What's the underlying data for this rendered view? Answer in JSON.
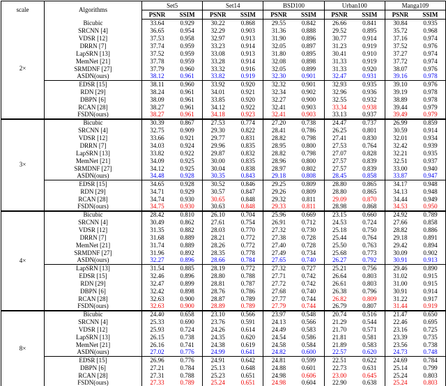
{
  "table": {
    "scale_header": "scale",
    "algorithms_header": "Algorithms",
    "datasets": [
      "Set5",
      "Set14",
      "BSD100",
      "Urban100",
      "Manga109"
    ],
    "metric_headers": [
      "PSNR",
      "SSIM"
    ],
    "colors": {
      "best": "#ee0000",
      "second_best": "#0000ee",
      "text": "#000000"
    },
    "legend_note": "color codes: k=black, b=blue (second best / ours-light), r=red (best)",
    "groups": [
      {
        "scale": "2×",
        "blocks": [
          [
            {
              "name": "Bicubic",
              "v": [
                "33.64",
                "0.929",
                "30.22",
                "0.868",
                "29.55",
                "0.842",
                "26.66",
                "0.841",
                "30.84",
                "0.935"
              ],
              "c": "kkkkkkkkkk"
            },
            {
              "name": "SRCNN [4]",
              "v": [
                "36.65",
                "0.954",
                "32.29",
                "0.903",
                "31.36",
                "0.888",
                "29.52",
                "0.895",
                "35.72",
                "0.968"
              ],
              "c": "kkkkkkkkkk"
            },
            {
              "name": "VDSR [12]",
              "v": [
                "37.53",
                "0.958",
                "32.97",
                "0.913",
                "31.90",
                "0.896",
                "30.77",
                "0.914",
                "37.16",
                "0.974"
              ],
              "c": "kkkkkkkkkk"
            },
            {
              "name": "DRRN [7]",
              "v": [
                "37.74",
                "0.959",
                "33.23",
                "0.914",
                "32.05",
                "0.897",
                "31.23",
                "0.919",
                "37.52",
                "0.976"
              ],
              "c": "kkkkkkkkkk"
            },
            {
              "name": "LapSRN [13]",
              "v": [
                "37.52",
                "0.959",
                "33.08",
                "0.913",
                "31.80",
                "0.895",
                "30.41",
                "0.910",
                "37.27",
                "0.974"
              ],
              "c": "kkkkkkkkkk"
            },
            {
              "name": "MemNet [21]",
              "v": [
                "37.78",
                "0.959",
                "33.28",
                "0.914",
                "32.08",
                "0.898",
                "31.33",
                "0.919",
                "37.72",
                "0.974"
              ],
              "c": "kkkkkkkkkk"
            },
            {
              "name": "SRMDNF [27]",
              "v": [
                "37.79",
                "0.960",
                "33.32",
                "0.916",
                "32.05",
                "0.899",
                "31.33",
                "0.920",
                "38.07",
                "0.976"
              ],
              "c": "kkkkkkkkkk"
            },
            {
              "name": "ASDN(ours)",
              "v": [
                "38.12",
                "0.961",
                "33.82",
                "0.919",
                "32.30",
                "0.901",
                "32.47",
                "0.931",
                "39.16",
                "0.978"
              ],
              "c": "bbbbbbbbbb"
            }
          ],
          [
            {
              "name": "EDSR [15]",
              "v": [
                "38.11",
                "0.960",
                "33.92",
                "0.920",
                "32.32",
                "0.901",
                "32.93",
                "0.935",
                "39.10",
                "0.976"
              ],
              "c": "kkkkkkkkkk"
            },
            {
              "name": "RDN [29]",
              "v": [
                "38.24",
                "0.961",
                "34.01",
                "0.921",
                "32.34",
                "0.902",
                "32.96",
                "0.936",
                "39.19",
                "0.978"
              ],
              "c": "kkkkkkkkkk"
            },
            {
              "name": "DBPN [6]",
              "v": [
                "38.09",
                "0.961",
                "33.85",
                "0.920",
                "32.27",
                "0.900",
                "32.55",
                "0.932",
                "38.89",
                "0.978"
              ],
              "c": "kkkkkkkkkk"
            },
            {
              "name": "RCAN [28]",
              "v": [
                "38.27",
                "0.961",
                "34.12",
                "0.922",
                "32.41",
                "0.903",
                "33.34",
                "0.938",
                "39.44",
                "0.979"
              ],
              "c": "kkkkkkrrkk"
            },
            {
              "name": "FSDN(ours)",
              "v": [
                "38.27",
                "0.961",
                "34.18",
                "0.923",
                "32.41",
                "0.903",
                "33.13",
                "0.937",
                "39.49",
                "0.979"
              ],
              "c": "rrrrrrkkrr"
            }
          ]
        ]
      },
      {
        "scale": "3×",
        "blocks": [
          [
            {
              "name": "Bicubic",
              "v": [
                "30.39",
                "0.867",
                "27.53",
                "0.774",
                "27.20",
                "0.738",
                "24.47",
                "0.737",
                "26.99",
                "0.859"
              ],
              "c": "kkkkkkkkkk"
            },
            {
              "name": "SRCNN [4]",
              "v": [
                "32.75",
                "0.909",
                "29.30",
                "0.822",
                "28.41",
                "0.786",
                "26.25",
                "0.801",
                "30.59",
                "0.914"
              ],
              "c": "kkkkkkkkkk"
            },
            {
              "name": "VDSR [12]",
              "v": [
                "33.66",
                "0.921",
                "29.77",
                "0.831",
                "28.82",
                "0.798",
                "27.41",
                "0.830",
                "32.01",
                "0.934"
              ],
              "c": "kkkkkkkkkk"
            },
            {
              "name": "DRRN [7]",
              "v": [
                "34.03",
                "0.924",
                "29.96",
                "0.835",
                "28.95",
                "0.800",
                "27.53",
                "0.764",
                "32.42",
                "0.939"
              ],
              "c": "kkkkkkkkkk"
            },
            {
              "name": "LapSRN [13]",
              "v": [
                "33.82",
                "0.922",
                "29.87",
                "0.832",
                "28.82",
                "0.798",
                "27.07",
                "0.828",
                "32.21",
                "0.935"
              ],
              "c": "kkkkkkkkkk"
            },
            {
              "name": "MemNet [21]",
              "v": [
                "34.09",
                "0.925",
                "30.00",
                "0.835",
                "28.96",
                "0.800",
                "27.57",
                "0.839",
                "32.51",
                "0.937"
              ],
              "c": "kkkkkkkkkk"
            },
            {
              "name": "SRMDNF [27]",
              "v": [
                "34.12",
                "0.925",
                "30.04",
                "0.838",
                "28.97",
                "0.802",
                "27.57",
                "0.839",
                "33.00",
                "0.940"
              ],
              "c": "kkkkkkkkkk"
            },
            {
              "name": "ASDN(ours)",
              "v": [
                "34.48",
                "0.928",
                "30.35",
                "0.843",
                "29.18",
                "0.808",
                "28.45",
                "0.858",
                "33.87",
                "0.947"
              ],
              "c": "bbbbbbbbbb"
            }
          ],
          [
            {
              "name": "EDSR [15]",
              "v": [
                "34.65",
                "0.928",
                "30.52",
                "0.846",
                "29.25",
                "0.809",
                "28.80",
                "0.865",
                "34.17",
                "0.948"
              ],
              "c": "kkkkkkkkkk"
            },
            {
              "name": "RDN [29]",
              "v": [
                "34.71",
                "0.929",
                "30.57",
                "0.847",
                "29.26",
                "0.809",
                "28.80",
                "0.865",
                "34.13",
                "0.948"
              ],
              "c": "kkkkkkkkkk"
            },
            {
              "name": "RCAN [28]",
              "v": [
                "34.74",
                "0.930",
                "30.65",
                "0.848",
                "29.32",
                "0.811",
                "29.09",
                "0.870",
                "34.44",
                "0.949"
              ],
              "c": "kkrkkkrrkk"
            },
            {
              "name": "FSDN(ours)",
              "v": [
                "34.75",
                "0.930",
                "30.63",
                "0.848",
                "29.33",
                "0.811",
                "28.98",
                "0.868",
                "34.53",
                "0.950"
              ],
              "c": "rrkrrrkkrr"
            }
          ]
        ]
      },
      {
        "scale": "4×",
        "blocks": [
          [
            {
              "name": "Bicubic",
              "v": [
                "28.42",
                "0.810",
                "26.10",
                "0.704",
                "25.96",
                "0.669",
                "23.15",
                "0.660",
                "24.92",
                "0.789"
              ],
              "c": "kkkkkkkkkk"
            },
            {
              "name": "SRCNN [4]",
              "v": [
                "30.49",
                "0.862",
                "27.61",
                "0.754",
                "26.91",
                "0.712",
                "24.53",
                "0.724",
                "27.66",
                "0.858"
              ],
              "c": "kkkkkkkkkk"
            },
            {
              "name": "VDSR [12]",
              "v": [
                "31.35",
                "0.882",
                "28.03",
                "0.770",
                "27.32",
                "0.730",
                "25.18",
                "0.750",
                "28.82",
                "0.886"
              ],
              "c": "kkkkkkkkkk"
            },
            {
              "name": "DRRN [7]",
              "v": [
                "31.68",
                "0.889",
                "28.21",
                "0.772",
                "27.38",
                "0.728",
                "25.44",
                "0.764",
                "29.18",
                "0.891"
              ],
              "c": "kkkkkkkkkk"
            },
            {
              "name": "MemNet [21]",
              "v": [
                "31.74",
                "0.889",
                "28.26",
                "0.772",
                "27.40",
                "0.728",
                "25.50",
                "0.763",
                "29.42",
                "0.894"
              ],
              "c": "kkkkkkkkkk"
            },
            {
              "name": "SRMDNF [27]",
              "v": [
                "31.96",
                "0.892",
                "28.35",
                "0.778",
                "27.49",
                "0.734",
                "25.68",
                "0.773",
                "30.09",
                "0.902"
              ],
              "c": "kkkkkkkkkk"
            },
            {
              "name": "ASDN(ours)",
              "v": [
                "32.27",
                "0.896",
                "28.66",
                "0.784",
                "27.65",
                "0.740",
                "26.27",
                "0.792",
                "30.91",
                "0.913"
              ],
              "c": "bbbbbbbbbb"
            }
          ],
          [
            {
              "name": "LapSRN [13]",
              "v": [
                "31.54",
                "0.885",
                "28.19",
                "0.772",
                "27.32",
                "0.727",
                "25.21",
                "0.756",
                "29.46",
                "0.890"
              ],
              "c": "kkkkkkkkkk"
            },
            {
              "name": "EDSR [15]",
              "v": [
                "32.46",
                "0.896",
                "28.80",
                "0.788",
                "27.71",
                "0.742",
                "26.64",
                "0.803",
                "31.02",
                "0.915"
              ],
              "c": "kkkkkkkkkk"
            },
            {
              "name": "RDN [29]",
              "v": [
                "32.47",
                "0.899",
                "28.81",
                "0.787",
                "27.72",
                "0.742",
                "26.61",
                "0.803",
                "31.00",
                "0.915"
              ],
              "c": "kkkkkkkkkk"
            },
            {
              "name": "DBPN [6]",
              "v": [
                "32.42",
                "0.898",
                "28.76",
                "0.786",
                "27.68",
                "0.740",
                "26.38",
                "0.796",
                "30.91",
                "0.914"
              ],
              "c": "kkkkkkkkkk"
            },
            {
              "name": "RCAN [28]",
              "v": [
                "32.63",
                "0.900",
                "28.87",
                "0.789",
                "27.77",
                "0.744",
                "26.82",
                "0.809",
                "31.22",
                "0.917"
              ],
              "c": "kkkkkkrrkk"
            },
            {
              "name": "FSDN(ours)",
              "v": [
                "32.63",
                "0.900",
                "28.89",
                "0.789",
                "27.79",
                "0.744",
                "26.79",
                "0.807",
                "31.44",
                "0.919"
              ],
              "c": "rrrrrrkkrr"
            }
          ]
        ]
      },
      {
        "scale": "8×",
        "blocks": [
          [
            {
              "name": "Bicubic",
              "v": [
                "24.40",
                "0.658",
                "23.10",
                "0.566",
                "23.97",
                "0.548",
                "20.74",
                "0.516",
                "21.47",
                "0.650"
              ],
              "c": "kkkkkkkkkk"
            },
            {
              "name": "SRCNN [4]",
              "v": [
                "25.33",
                "0.690",
                "23.76",
                "0.591",
                "24.13",
                "0.566",
                "21.29",
                "0.544",
                "22.46",
                "0.695"
              ],
              "c": "kkkkkkkkkk"
            },
            {
              "name": "VDSR [12]",
              "v": [
                "25.93",
                "0.724",
                "24.26",
                "0.614",
                "24.49",
                "0.583",
                "21.70",
                "0.571",
                "23.16",
                "0.725"
              ],
              "c": "kkkkkkkkkk"
            },
            {
              "name": "LapSRN [13]",
              "v": [
                "26.15",
                "0.738",
                "24.35",
                "0.620",
                "24.54",
                "0.586",
                "21.81",
                "0.581",
                "23.39",
                "0.735"
              ],
              "c": "kkkkkkkkkk"
            },
            {
              "name": "MemNet [21]",
              "v": [
                "26.16",
                "0.741",
                "24.38",
                "0.619",
                "24.58",
                "0.584",
                "21.89",
                "0.583",
                "23.56",
                "0.738"
              ],
              "c": "kkkkkkkkkk"
            },
            {
              "name": "ASDN(ours)",
              "v": [
                "27.02",
                "0.776",
                "24.99",
                "0.641",
                "24.82",
                "0.600",
                "22.57",
                "0.620",
                "24.73",
                "0.748"
              ],
              "c": "bbbbbbbbbb"
            }
          ],
          [
            {
              "name": "EDSR [15]",
              "v": [
                "26.96",
                "0.776",
                "24.91",
                "0.642",
                "24.81",
                "0.599",
                "22.51",
                "0.622",
                "24.69",
                "0.784"
              ],
              "c": "kkkkkkkkkk"
            },
            {
              "name": "DBPN [6]",
              "v": [
                "27.21",
                "0.784",
                "25.13",
                "0.648",
                "24.88",
                "0.601",
                "22.73",
                "0.631",
                "25.14",
                "0.799"
              ],
              "c": "kkkkkkkkkk"
            },
            {
              "name": "RCAN [28]",
              "v": [
                "27.31",
                "0.788",
                "25.23",
                "0.651",
                "24.98",
                "0.606",
                "23.00",
                "0.645",
                "25.24",
                "0.803"
              ],
              "c": "kkkkkrrrkk"
            },
            {
              "name": "FSDN(ours)",
              "v": [
                "27.33",
                "0.789",
                "25.24",
                "0.651",
                "24.98",
                "0.604",
                "22.90",
                "0.638",
                "25.24",
                "0.803"
              ],
              "c": "rrrrrkkkrr"
            }
          ]
        ]
      }
    ]
  }
}
